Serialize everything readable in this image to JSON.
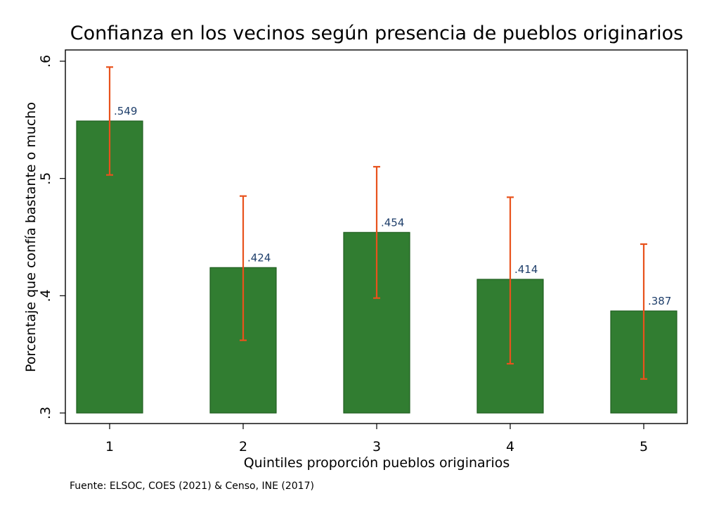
{
  "chart_data": {
    "type": "bar",
    "title": "Confianza en los vecinos según presencia de pueblos originarios",
    "xlabel": "Quintiles proporción pueblos originarios",
    "ylabel": "Porcentaje que confía bastante o mucho",
    "categories": [
      "1",
      "2",
      "3",
      "4",
      "5"
    ],
    "values": [
      0.549,
      0.424,
      0.454,
      0.414,
      0.387
    ],
    "value_labels": [
      ".549",
      ".424",
      ".454",
      ".414",
      ".387"
    ],
    "ci_lower": [
      0.503,
      0.362,
      0.398,
      0.342,
      0.329
    ],
    "ci_upper": [
      0.595,
      0.485,
      0.51,
      0.484,
      0.444
    ],
    "ylim": [
      0.3,
      0.6
    ],
    "yticks": [
      0.3,
      0.4,
      0.5,
      0.6
    ],
    "ytick_labels": [
      ".3",
      ".4",
      ".5",
      ".6"
    ],
    "bar_color": "#317d31",
    "bar_edge_color": "#1e5e1e",
    "error_bar_color": "#e8521c",
    "label_color": "#1f3f6b",
    "grid": false,
    "legend": false,
    "source_note": "Fuente: ELSOC, COES (2021) & Censo, INE (2017)"
  }
}
